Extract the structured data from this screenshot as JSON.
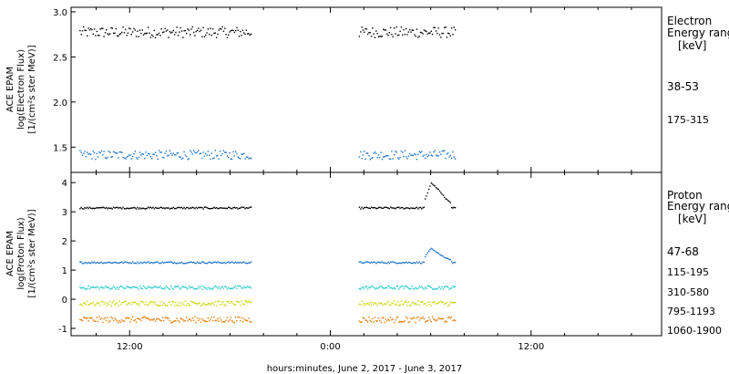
{
  "chart_data": [
    {
      "type": "scatter",
      "panel": "electron",
      "ylabel": [
        "ACE EPAM",
        "log(Electron Flux)",
        "[1/(cm²s ster MeV)]"
      ],
      "ylim": [
        1.22,
        3.05
      ],
      "yticks": [
        "1.5",
        "2.0",
        "2.5",
        "3.0"
      ],
      "ytick_values": [
        1.5,
        2.0,
        2.5,
        3.0
      ],
      "legend_title": [
        "Electron",
        "Energy range",
        "[keV]"
      ],
      "gap_hours": [
        19.3,
        25.7
      ],
      "series": [
        {
          "name": "38-53",
          "color": "#000000",
          "mean": 2.78,
          "spread": 0.06
        },
        {
          "name": "175-315",
          "color": "#1a72c8",
          "mean": 1.42,
          "spread": 0.05
        }
      ]
    },
    {
      "type": "scatter",
      "panel": "proton",
      "ylabel": [
        "ACE EPAM",
        "log(Proton Flux)",
        "[1/(cm²s ster MeV)]"
      ],
      "ylim": [
        -1.25,
        4.35
      ],
      "yticks": [
        "-1",
        "0",
        "1",
        "2",
        "3",
        "4"
      ],
      "ytick_values": [
        -1,
        0,
        1,
        2,
        3,
        4
      ],
      "legend_title": [
        "Proton",
        "Energy range",
        "[keV]"
      ],
      "gap_hours": [
        19.3,
        25.7
      ],
      "series": [
        {
          "name": "47-68",
          "color": "#000000",
          "mean": 3.15,
          "spread": 0.03
        },
        {
          "name": "115-195",
          "color": "#1a72c8",
          "mean": 1.28,
          "spread": 0.03
        },
        {
          "name": "310-580",
          "color": "#22c8c8",
          "mean": 0.42,
          "spread": 0.06
        },
        {
          "name": "795-1193",
          "color": "#c8d400",
          "mean": -0.12,
          "spread": 0.08
        },
        {
          "name": "1060-1900",
          "color": "#e07800",
          "mean": -0.68,
          "spread": 0.1
        }
      ],
      "events": [
        {
          "series": "47-68",
          "x_hours": [
            29.6,
            30.0,
            30.4,
            30.8,
            31.2
          ],
          "values": [
            3.4,
            4.0,
            3.8,
            3.5,
            3.3
          ]
        },
        {
          "series": "115-195",
          "x_hours": [
            29.6,
            30.0,
            30.4,
            30.8,
            31.2
          ],
          "values": [
            1.45,
            1.78,
            1.6,
            1.45,
            1.35
          ]
        }
      ]
    }
  ],
  "x_axis": {
    "label": "hours:minutes, June  2, 2017 - June  3, 2017",
    "range_hours": [
      8.5,
      43.8
    ],
    "ticks": [
      {
        "label": "12:00",
        "hours": 12
      },
      {
        "label": "0:00",
        "hours": 24
      },
      {
        "label": "12:00",
        "hours": 36
      }
    ]
  }
}
